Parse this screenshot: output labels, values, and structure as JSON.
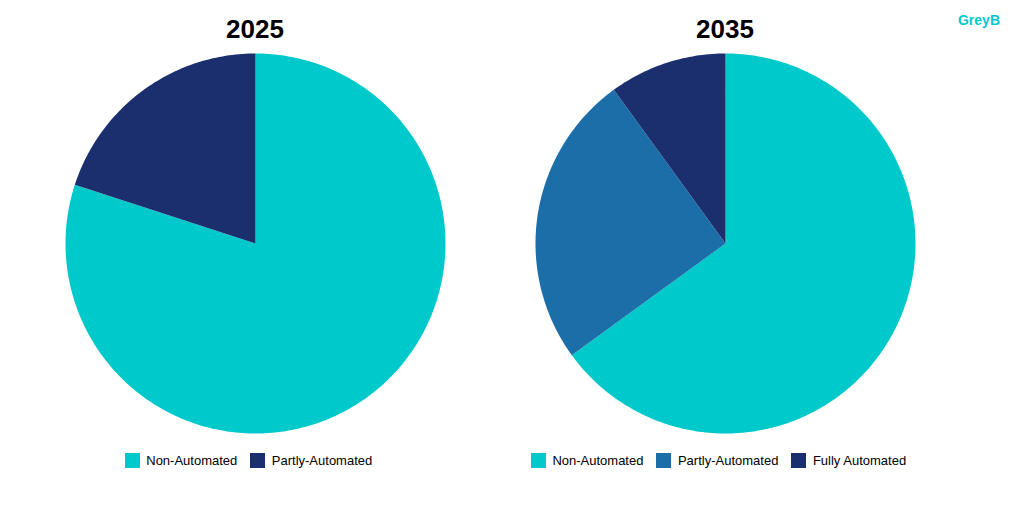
{
  "chart_data": [
    {
      "type": "pie",
      "title": "2025",
      "categories": [
        "Non-Automated",
        "Partly-Automated"
      ],
      "values": [
        80,
        20
      ],
      "colors": [
        "#00C9CC",
        "#1B2E6E"
      ],
      "legend": "bottom"
    },
    {
      "type": "pie",
      "title": "2035",
      "categories": [
        "Non-Automated",
        "Partly-Automated",
        "Fully Automated"
      ],
      "values": [
        65,
        25,
        10
      ],
      "colors": [
        "#00C9CC",
        "#1B6EA8",
        "#1B2E6E"
      ],
      "legend": "bottom",
      "annotations": [
        "GreyB"
      ]
    }
  ]
}
